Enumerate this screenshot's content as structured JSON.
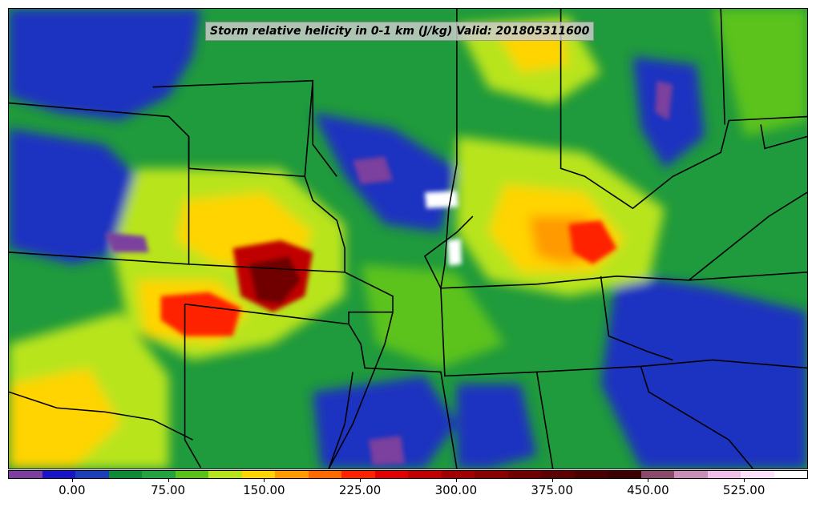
{
  "title": "Storm relative helicity in 0-1 km (J/kg) Valid: 201805311600",
  "colorbar": {
    "min": -50,
    "max": 575,
    "colors": [
      "#7c3f9e",
      "#1a14c8",
      "#1a3fb8",
      "#0d8a35",
      "#23a33f",
      "#5bc21a",
      "#b8e41c",
      "#ffd400",
      "#ff9a00",
      "#ff6a00",
      "#ff2200",
      "#e00000",
      "#c00000",
      "#a00000",
      "#880000",
      "#700000",
      "#5c0000",
      "#4a0000",
      "#3c0000",
      "#8a4a6a",
      "#c890b8",
      "#f0bfe8",
      "#fde0fa",
      "#ffffff"
    ],
    "ticks": [
      {
        "value": 0,
        "label": "0.00"
      },
      {
        "value": 75,
        "label": "75.00"
      },
      {
        "value": 150,
        "label": "150.00"
      },
      {
        "value": 225,
        "label": "225.00"
      },
      {
        "value": 300,
        "label": "300.00"
      },
      {
        "value": 375,
        "label": "375.00"
      },
      {
        "value": 450,
        "label": "450.00"
      },
      {
        "value": 525,
        "label": "525.00"
      }
    ]
  }
}
